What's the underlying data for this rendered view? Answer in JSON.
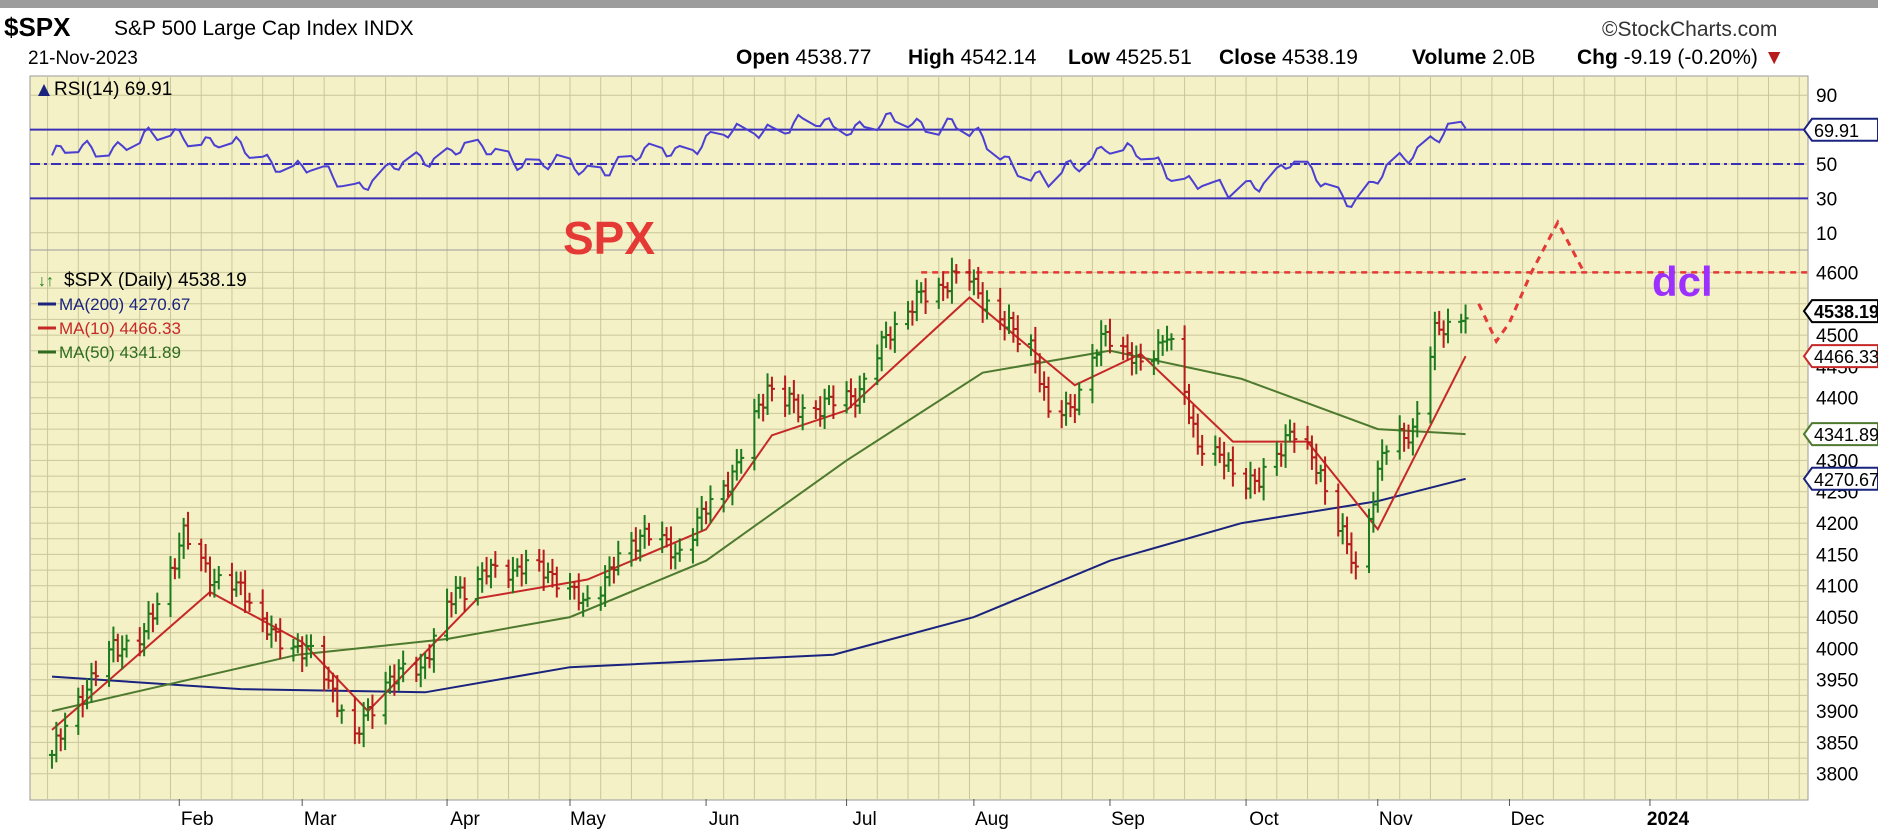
{
  "header": {
    "symbol": "$SPX",
    "name": "S&P 500 Large Cap Index",
    "exchange": "INDX",
    "date": "21-Nov-2023",
    "brand": "©StockCharts.com",
    "quote": {
      "open_label": "Open",
      "open": "4538.77",
      "high_label": "High",
      "high": "4542.14",
      "low_label": "Low",
      "low": "4525.51",
      "close_label": "Close",
      "close": "4538.19",
      "volume_label": "Volume",
      "volume": "2.0B",
      "chg_label": "Chg",
      "chg": "-9.19 (-0.20%)"
    }
  },
  "rsi_panel": {
    "legend": "RSI(14) 69.91",
    "ticks": [
      "90",
      "70",
      "50",
      "30",
      "10"
    ],
    "current_label": "69.91",
    "levels": [
      70,
      50,
      30
    ],
    "last_value": 69.91
  },
  "price_panel": {
    "annotation_spx": "SPX",
    "annotation_dcl": "dcl",
    "legend": [
      {
        "text": "$SPX (Daily) 4538.19",
        "color": "#000000"
      },
      {
        "text": "MA(200) 4270.67",
        "color": "#1a237e"
      },
      {
        "text": "MA(10) 4466.33",
        "color": "#c62828"
      },
      {
        "text": "MA(50) 4341.89",
        "color": "#2e6b1f"
      }
    ],
    "y_ticks": [
      4600,
      4500,
      4450,
      4400,
      4350,
      4300,
      4250,
      4200,
      4150,
      4100,
      4050,
      4000,
      3950,
      3900,
      3850,
      3800
    ],
    "price_label": "4538.19",
    "ma10_label": "4466.33",
    "ma50_label": "4341.89",
    "ma200_label": "4270.67",
    "resistance_level": 4600,
    "colors": {
      "up": "#1d7a1d",
      "down": "#b71c1c",
      "ma200": "#1a237e",
      "ma10": "#c62828",
      "ma50": "#4d7a2e",
      "projection": "#e53935",
      "dcl": "#9b30ff"
    }
  },
  "x_axis": {
    "months": [
      "Feb",
      "Mar",
      "Apr",
      "May",
      "Jun",
      "Jul",
      "Aug",
      "Sep",
      "Oct",
      "Nov",
      "Dec",
      "2024"
    ]
  },
  "chart_data": {
    "type": "line",
    "title": "$SPX S&P 500 Large Cap Index INDX",
    "x_type": "date",
    "series": [
      {
        "name": "$SPX (Daily)",
        "values": [
          [
            "2023-01-03",
            3830
          ],
          [
            "2023-01-10",
            3930
          ],
          [
            "2023-01-17",
            4000
          ],
          [
            "2023-01-24",
            4020
          ],
          [
            "2023-02-02",
            4180
          ],
          [
            "2023-02-09",
            4110
          ],
          [
            "2023-02-16",
            4090
          ],
          [
            "2023-02-23",
            4010
          ],
          [
            "2023-03-02",
            4000
          ],
          [
            "2023-03-09",
            3920
          ],
          [
            "2023-03-13",
            3855
          ],
          [
            "2023-03-20",
            3950
          ],
          [
            "2023-03-28",
            3970
          ],
          [
            "2023-04-05",
            4090
          ],
          [
            "2023-04-12",
            4120
          ],
          [
            "2023-04-20",
            4130
          ],
          [
            "2023-04-27",
            4120
          ],
          [
            "2023-05-04",
            4070
          ],
          [
            "2023-05-11",
            4130
          ],
          [
            "2023-05-18",
            4190
          ],
          [
            "2023-05-25",
            4150
          ],
          [
            "2023-06-01",
            4220
          ],
          [
            "2023-06-08",
            4290
          ],
          [
            "2023-06-15",
            4420
          ],
          [
            "2023-06-22",
            4380
          ],
          [
            "2023-06-29",
            4390
          ],
          [
            "2023-07-06",
            4410
          ],
          [
            "2023-07-13",
            4510
          ],
          [
            "2023-07-20",
            4560
          ],
          [
            "2023-07-27",
            4590
          ],
          [
            "2023-07-31",
            4590
          ],
          [
            "2023-08-07",
            4520
          ],
          [
            "2023-08-14",
            4490
          ],
          [
            "2023-08-18",
            4370
          ],
          [
            "2023-08-25",
            4400
          ],
          [
            "2023-08-31",
            4510
          ],
          [
            "2023-09-07",
            4450
          ],
          [
            "2023-09-14",
            4500
          ],
          [
            "2023-09-21",
            4330
          ],
          [
            "2023-09-28",
            4290
          ],
          [
            "2023-10-05",
            4260
          ],
          [
            "2023-10-12",
            4350
          ],
          [
            "2023-10-19",
            4280
          ],
          [
            "2023-10-27",
            4120
          ],
          [
            "2023-11-02",
            4310
          ],
          [
            "2023-11-09",
            4350
          ],
          [
            "2023-11-14",
            4500
          ],
          [
            "2023-11-21",
            4538.19
          ]
        ]
      },
      {
        "name": "MA(200)",
        "values": [
          [
            "2023-01-03",
            3955
          ],
          [
            "2023-02-15",
            3935
          ],
          [
            "2023-03-29",
            3930
          ],
          [
            "2023-05-01",
            3970
          ],
          [
            "2023-06-30",
            3990
          ],
          [
            "2023-08-01",
            4050
          ],
          [
            "2023-09-01",
            4140
          ],
          [
            "2023-10-01",
            4200
          ],
          [
            "2023-11-01",
            4235
          ],
          [
            "2023-11-21",
            4270.67
          ]
        ]
      },
      {
        "name": "MA(10)",
        "values": [
          [
            "2023-01-03",
            3870
          ],
          [
            "2023-02-08",
            4090
          ],
          [
            "2023-03-01",
            4010
          ],
          [
            "2023-03-16",
            3900
          ],
          [
            "2023-04-10",
            4080
          ],
          [
            "2023-05-05",
            4110
          ],
          [
            "2023-06-01",
            4190
          ],
          [
            "2023-06-16",
            4340
          ],
          [
            "2023-07-03",
            4380
          ],
          [
            "2023-07-31",
            4560
          ],
          [
            "2023-08-24",
            4420
          ],
          [
            "2023-09-08",
            4470
          ],
          [
            "2023-09-29",
            4330
          ],
          [
            "2023-10-16",
            4330
          ],
          [
            "2023-11-01",
            4190
          ],
          [
            "2023-11-21",
            4466.33
          ]
        ]
      },
      {
        "name": "MA(50)",
        "values": [
          [
            "2023-01-03",
            3900
          ],
          [
            "2023-02-28",
            3990
          ],
          [
            "2023-04-03",
            4015
          ],
          [
            "2023-05-01",
            4050
          ],
          [
            "2023-06-01",
            4140
          ],
          [
            "2023-07-03",
            4300
          ],
          [
            "2023-08-03",
            4440
          ],
          [
            "2023-09-01",
            4475
          ],
          [
            "2023-10-01",
            4430
          ],
          [
            "2023-11-01",
            4350
          ],
          [
            "2023-11-21",
            4341.89
          ]
        ]
      },
      {
        "name": "RSI(14)",
        "values": [
          [
            "2023-01-03",
            55
          ],
          [
            "2023-02-02",
            68
          ],
          [
            "2023-03-13",
            38
          ],
          [
            "2023-04-05",
            60
          ],
          [
            "2023-05-04",
            46
          ],
          [
            "2023-06-15",
            72
          ],
          [
            "2023-07-27",
            74
          ],
          [
            "2023-08-18",
            38
          ],
          [
            "2023-08-31",
            62
          ],
          [
            "2023-09-28",
            32
          ],
          [
            "2023-10-12",
            50
          ],
          [
            "2023-10-27",
            29
          ],
          [
            "2023-11-14",
            68
          ],
          [
            "2023-11-21",
            69.91
          ]
        ]
      }
    ],
    "ylim": [
      3780,
      4620
    ],
    "ylabel": "",
    "xlabel": ""
  }
}
